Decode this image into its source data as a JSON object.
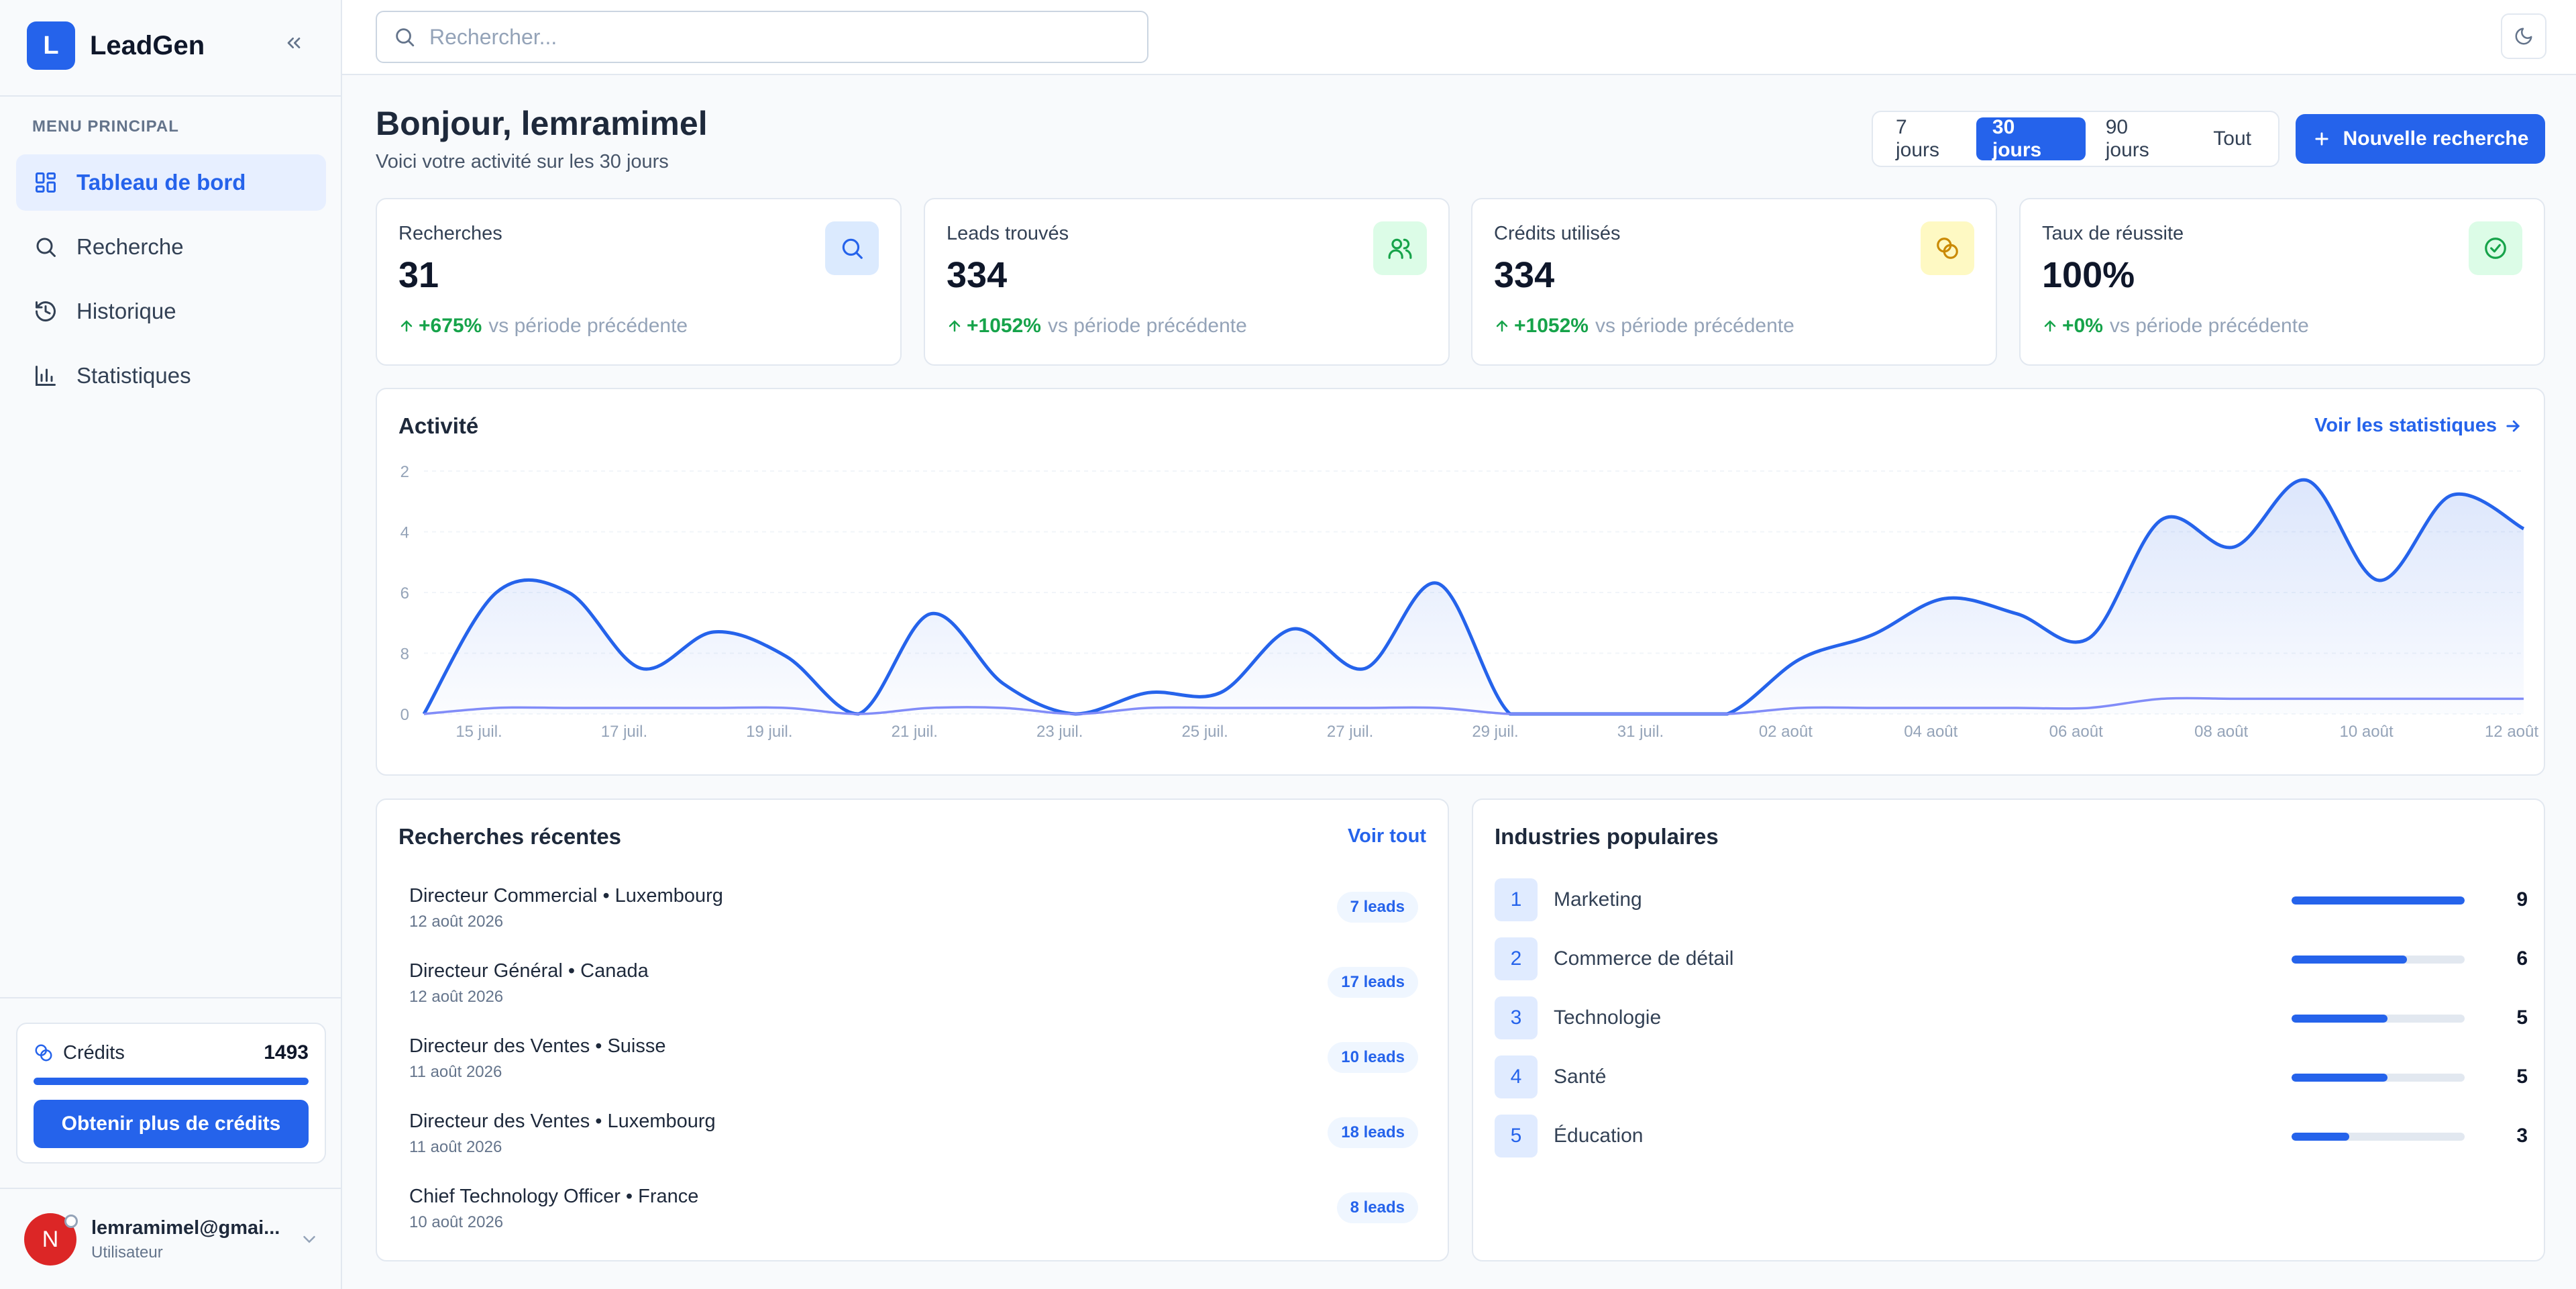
{
  "brand": {
    "logo_letter": "L",
    "name": "LeadGen"
  },
  "sidebar": {
    "menu_heading": "MENU PRINCIPAL",
    "items": [
      {
        "label": "Tableau de bord",
        "icon": "dashboard-icon",
        "active": true
      },
      {
        "label": "Recherche",
        "icon": "search-icon",
        "active": false
      },
      {
        "label": "Historique",
        "icon": "history-icon",
        "active": false
      },
      {
        "label": "Statistiques",
        "icon": "bar-chart-icon",
        "active": false
      }
    ],
    "credits": {
      "label": "Crédits",
      "value": "1493",
      "bar_fraction": 1.0,
      "button_label": "Obtenir plus de crédits"
    },
    "user": {
      "initial": "N",
      "name": "lemramimel@gmai...",
      "role": "Utilisateur"
    }
  },
  "topbar": {
    "search_placeholder": "Rechercher..."
  },
  "header": {
    "title": "Bonjour, lemramimel",
    "subtitle": "Voici votre activité sur les 30 jours",
    "periods": [
      {
        "label": "7 jours",
        "active": false
      },
      {
        "label": "30 jours",
        "active": true
      },
      {
        "label": "90 jours",
        "active": false
      },
      {
        "label": "Tout",
        "active": false
      }
    ],
    "new_search_label": "Nouvelle recherche"
  },
  "stats": [
    {
      "label": "Recherches",
      "value": "31",
      "change": "+675%",
      "suffix": "vs période précédente",
      "icon": "search-icon",
      "icon_bg": "#dbeafe",
      "icon_color": "#2563eb"
    },
    {
      "label": "Leads trouvés",
      "value": "334",
      "change": "+1052%",
      "suffix": "vs période précédente",
      "icon": "users-icon",
      "icon_bg": "#dcfce7",
      "icon_color": "#16a34a"
    },
    {
      "label": "Crédits utilisés",
      "value": "334",
      "change": "+1052%",
      "suffix": "vs période précédente",
      "icon": "coins-icon",
      "icon_bg": "#fef9c3",
      "icon_color": "#ca8a04"
    },
    {
      "label": "Taux de réussite",
      "value": "100%",
      "change": "+0%",
      "suffix": "vs période précédente",
      "icon": "check-circle-icon",
      "icon_bg": "#dcfce7",
      "icon_color": "#16a34a"
    }
  ],
  "activity": {
    "title": "Activité",
    "link_label": "Voir les statistiques"
  },
  "chart_data": {
    "type": "area",
    "title": "Activité",
    "ytick_labels": [
      "2",
      "4",
      "6",
      "8",
      "0"
    ],
    "xtick_labels": [
      "15 juil.",
      "17 juil.",
      "19 juil.",
      "21 juil.",
      "23 juil.",
      "25 juil.",
      "27 juil.",
      "29 juil.",
      "31 juil.",
      "02 août",
      "04 août",
      "06 août",
      "08 août",
      "10 août",
      "12 août"
    ],
    "grid": true,
    "x": [
      "14 juil.",
      "15 juil.",
      "16 juil.",
      "17 juil.",
      "18 juil.",
      "19 juil.",
      "20 juil.",
      "21 juil.",
      "22 juil.",
      "23 juil.",
      "24 juil.",
      "25 juil.",
      "26 juil.",
      "27 juil.",
      "28 juil.",
      "29 juil.",
      "30 juil.",
      "31 juil.",
      "01 août",
      "02 août",
      "03 août",
      "04 août",
      "05 août",
      "06 août",
      "07 août",
      "08 août",
      "09 août",
      "10 août",
      "11 août",
      "12 août"
    ],
    "series": [
      {
        "color": "#2563eb",
        "values": [
          0,
          4,
          4,
          1.5,
          2.7,
          1.9,
          0,
          3.3,
          1,
          0,
          0.7,
          0.7,
          2.8,
          1.5,
          4.3,
          0,
          0,
          0,
          0,
          1.8,
          2.6,
          3.8,
          3.3,
          2.5,
          6.4,
          5.5,
          7.7,
          4.4,
          7.2,
          6.1
        ]
      },
      {
        "color": "#818cf8",
        "values": [
          0,
          0.2,
          0.2,
          0.2,
          0.2,
          0.2,
          0,
          0.2,
          0.2,
          0,
          0.2,
          0.2,
          0.2,
          0.2,
          0.2,
          0,
          0,
          0,
          0,
          0.2,
          0.2,
          0.2,
          0.2,
          0.2,
          0.5,
          0.5,
          0.5,
          0.5,
          0.5,
          0.5
        ]
      }
    ]
  },
  "recent": {
    "title": "Recherches récentes",
    "link_label": "Voir tout",
    "items": [
      {
        "title": "Directeur Commercial • Luxembourg",
        "date": "12 août 2026",
        "badge": "7 leads"
      },
      {
        "title": "Directeur Général • Canada",
        "date": "12 août 2026",
        "badge": "17 leads"
      },
      {
        "title": "Directeur des Ventes • Suisse",
        "date": "11 août 2026",
        "badge": "10 leads"
      },
      {
        "title": "Directeur des Ventes • Luxembourg",
        "date": "11 août 2026",
        "badge": "18 leads"
      },
      {
        "title": "Chief Technology Officer • France",
        "date": "10 août 2026",
        "badge": "8 leads"
      }
    ]
  },
  "industries": {
    "title": "Industries populaires",
    "items": [
      {
        "rank": "1",
        "name": "Marketing",
        "count": 9,
        "fraction": 1.0
      },
      {
        "rank": "2",
        "name": "Commerce de détail",
        "count": 6,
        "fraction": 0.667
      },
      {
        "rank": "3",
        "name": "Technologie",
        "count": 5,
        "fraction": 0.556
      },
      {
        "rank": "4",
        "name": "Santé",
        "count": 5,
        "fraction": 0.556
      },
      {
        "rank": "5",
        "name": "Éducation",
        "count": 3,
        "fraction": 0.333
      }
    ]
  }
}
